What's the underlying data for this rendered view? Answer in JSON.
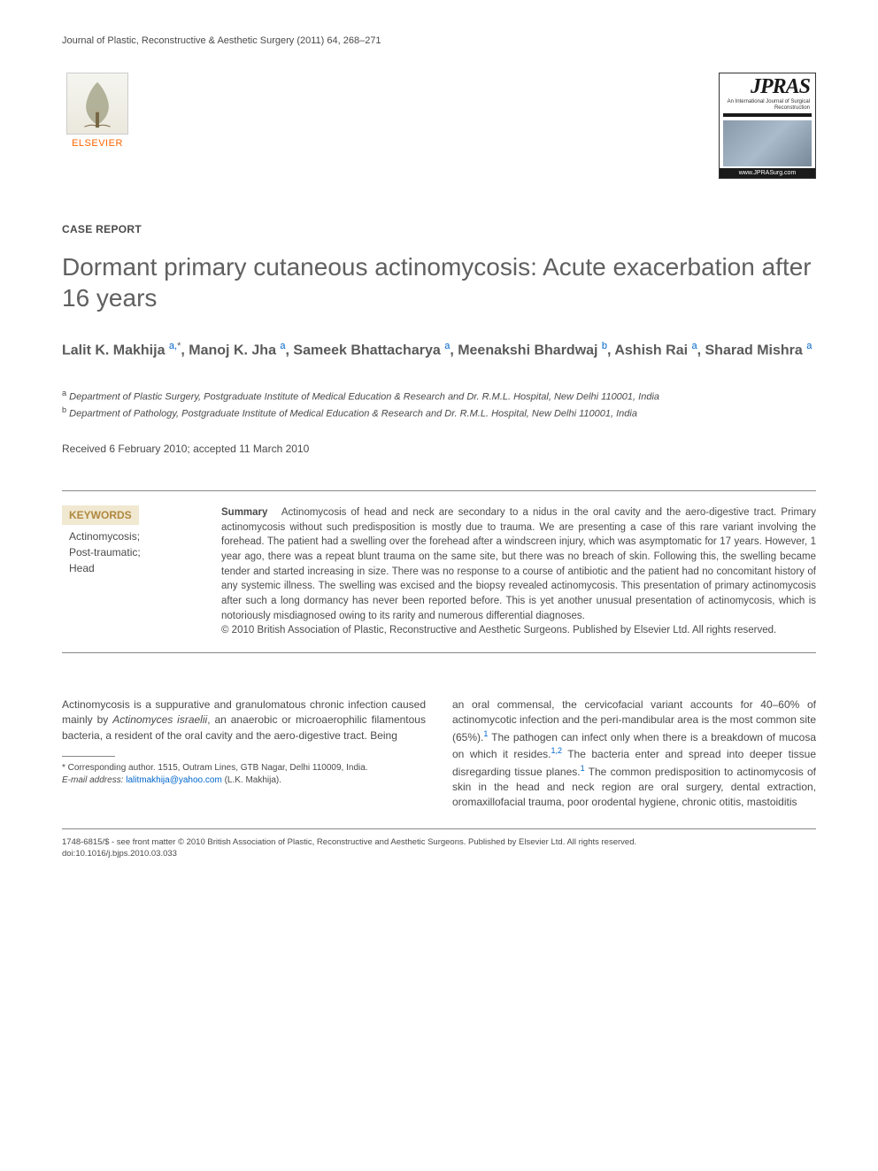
{
  "running_head": "Journal of Plastic, Reconstructive & Aesthetic Surgery (2011) 64, 268–271",
  "publisher_logo": {
    "text": "ELSEVIER",
    "color": "#ff6600"
  },
  "journal_logo": {
    "acronym": "JPRAS",
    "subtitle": "An International Journal of Surgical Reconstruction",
    "url": "www.JPRASurg.com"
  },
  "article_type": "CASE REPORT",
  "title": "Dormant primary cutaneous actinomycosis: Acute exacerbation after 16 years",
  "authors_html": "Lalit K. Makhija <sup>a,</sup><sup class=\"sup-star\">*</sup>, Manoj K. Jha <sup>a</sup>, Sameek Bhattacharya <sup>a</sup>, Meenakshi Bhardwaj <sup>b</sup>, Ashish Rai <sup>a</sup>, Sharad Mishra <sup>a</sup>",
  "affiliations": [
    {
      "sup": "a",
      "text": "Department of Plastic Surgery, Postgraduate Institute of Medical Education & Research and Dr. R.M.L. Hospital, New Delhi 110001, India"
    },
    {
      "sup": "b",
      "text": "Department of Pathology, Postgraduate Institute of Medical Education & Research and Dr. R.M.L. Hospital, New Delhi 110001, India"
    }
  ],
  "dates": "Received 6 February 2010; accepted 11 March 2010",
  "keywords": {
    "heading": "KEYWORDS",
    "heading_bg": "#f0e8d0",
    "heading_color": "#b08840",
    "items": [
      "Actinomycosis;",
      "Post-traumatic;",
      "Head"
    ]
  },
  "summary": {
    "label": "Summary",
    "text": "Actinomycosis of head and neck are secondary to a nidus in the oral cavity and the aero-digestive tract. Primary actinomycosis without such predisposition is mostly due to trauma. We are presenting a case of this rare variant involving the forehead. The patient had a swelling over the forehead after a windscreen injury, which was asymptomatic for 17 years. However, 1 year ago, there was a repeat blunt trauma on the same site, but there was no breach of skin. Following this, the swelling became tender and started increasing in size. There was no response to a course of antibiotic and the patient had no concomitant history of any systemic illness. The swelling was excised and the biopsy revealed actinomycosis. This presentation of primary actinomycosis after such a long dormancy has never been reported before. This is yet another unusual presentation of actinomycosis, which is notoriously misdiagnosed owing to its rarity and numerous differential diagnoses.",
    "copyright": "© 2010 British Association of Plastic, Reconstructive and Aesthetic Surgeons. Published by Elsevier Ltd. All rights reserved."
  },
  "body": {
    "col1": "Actinomycosis is a suppurative and granulomatous chronic infection caused mainly by <em>Actinomyces israelii</em>, an anaerobic or microaerophilic filamentous bacteria, a resident of the oral cavity and the aero-digestive tract. Being",
    "col2": "an oral commensal, the cervicofacial variant accounts for 40–60% of actinomycotic infection and the peri-mandibular area is the most common site (65%).<sup>1</sup> The pathogen can infect only when there is a breakdown of mucosa on which it resides.<sup>1,2</sup> The bacteria enter and spread into deeper tissue disregarding tissue planes.<sup>1</sup> The common predisposition to actinomycosis of skin in the head and neck region are oral surgery, dental extraction, oromaxillofacial trauma, poor orodental hygiene, chronic otitis, mastoiditis"
  },
  "corresponding": {
    "note": "* Corresponding author. 1515, Outram Lines, GTB Nagar, Delhi 110009, India.",
    "email_label": "E-mail address:",
    "email": "lalitmakhija@yahoo.com",
    "email_name": "(L.K. Makhija)."
  },
  "footer": {
    "line1": "1748-6815/$ - see front matter © 2010 British Association of Plastic, Reconstructive and Aesthetic Surgeons. Published by Elsevier Ltd. All rights reserved.",
    "line2": "doi:10.1016/j.bjps.2010.03.033"
  },
  "link_color": "#0066cc",
  "text_color": "#4a4a4a",
  "title_color": "#606060"
}
